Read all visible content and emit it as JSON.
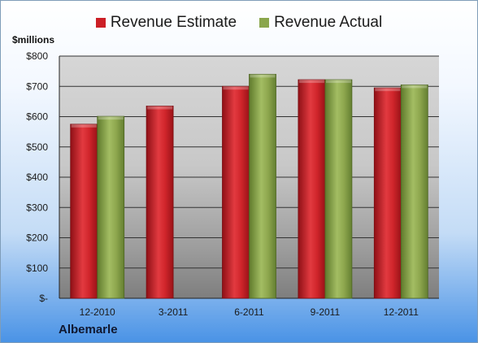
{
  "chart_data": {
    "type": "bar",
    "categories": [
      "12-2010",
      "3-2011",
      "6-2011",
      "9-2011",
      "12-2011"
    ],
    "series": [
      {
        "name": "Revenue Estimate",
        "values": [
          575,
          635,
          700,
          722,
          695
        ],
        "color": "#cc1f26"
      },
      {
        "name": "Revenue Actual",
        "values": [
          601,
          null,
          740,
          722,
          705
        ],
        "color": "#8aa64c"
      }
    ],
    "ylabel": "$millions",
    "ylim": [
      0,
      800
    ],
    "yticks": [
      0,
      100,
      200,
      300,
      400,
      500,
      600,
      700,
      800
    ],
    "ytick_labels": [
      "$-",
      "$100",
      "$200",
      "$300",
      "$400",
      "$500",
      "$600",
      "$700",
      "$800"
    ],
    "legend_position": "top",
    "grid": true
  },
  "company": "Albemarle"
}
